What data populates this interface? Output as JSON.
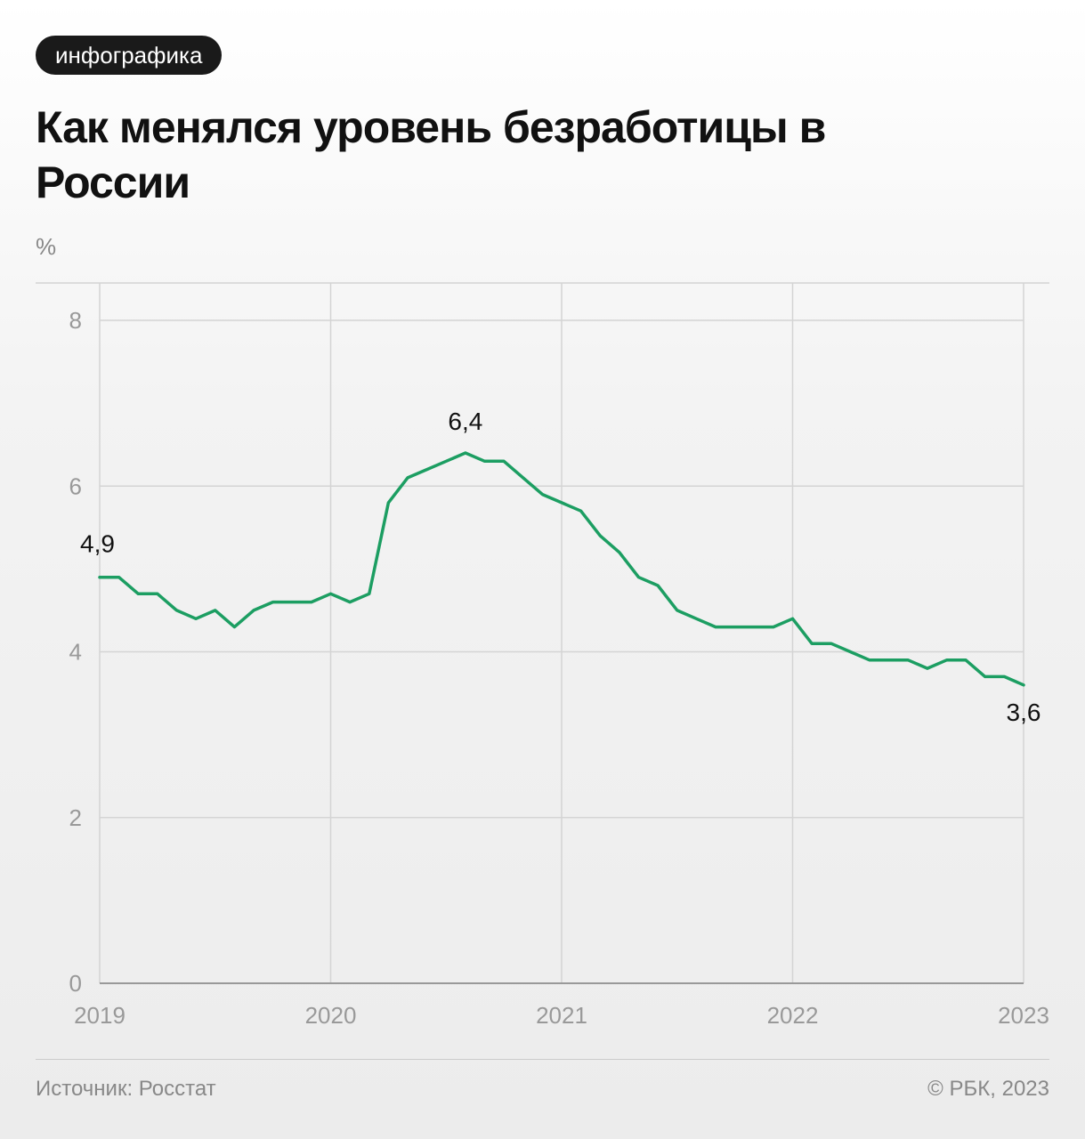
{
  "badge": "инфографика",
  "title": "Как менялся уровень безработицы в России",
  "unit_label": "%",
  "source": "Источник: Росстат",
  "copyright": "© РБК, 2023",
  "colors": {
    "line": "#1c9e62",
    "grid": "#d4d4d4",
    "axis": "#999999",
    "badge_bg": "#1a1a1a"
  },
  "chart_data": {
    "type": "line",
    "xlabel": "",
    "ylabel": "%",
    "ylim": [
      0,
      8
    ],
    "yticks": [
      0,
      2,
      4,
      6,
      8
    ],
    "xlim": [
      2019,
      2023
    ],
    "xticks": [
      "2019",
      "2020",
      "2021",
      "2022",
      "2023"
    ],
    "grid": true,
    "x": [
      2019.0,
      2019.0833,
      2019.1667,
      2019.25,
      2019.3333,
      2019.4167,
      2019.5,
      2019.5833,
      2019.6667,
      2019.75,
      2019.8333,
      2019.9167,
      2020.0,
      2020.0833,
      2020.1667,
      2020.25,
      2020.3333,
      2020.4167,
      2020.5,
      2020.5833,
      2020.6667,
      2020.75,
      2020.8333,
      2020.9167,
      2021.0,
      2021.0833,
      2021.1667,
      2021.25,
      2021.3333,
      2021.4167,
      2021.5,
      2021.5833,
      2021.6667,
      2021.75,
      2021.8333,
      2021.9167,
      2022.0,
      2022.0833,
      2022.1667,
      2022.25,
      2022.3333,
      2022.4167,
      2022.5,
      2022.5833,
      2022.6667,
      2022.75,
      2022.8333,
      2022.9167,
      2023.0
    ],
    "values": [
      4.9,
      4.9,
      4.7,
      4.7,
      4.5,
      4.4,
      4.5,
      4.3,
      4.5,
      4.6,
      4.6,
      4.6,
      4.7,
      4.6,
      4.7,
      5.8,
      6.1,
      6.2,
      6.3,
      6.4,
      6.3,
      6.3,
      6.1,
      5.9,
      5.8,
      5.7,
      5.4,
      5.2,
      4.9,
      4.8,
      4.5,
      4.4,
      4.3,
      4.3,
      4.3,
      4.3,
      4.4,
      4.1,
      4.1,
      4.0,
      3.9,
      3.9,
      3.9,
      3.8,
      3.9,
      3.9,
      3.7,
      3.7,
      3.6
    ],
    "annotations": [
      {
        "index": 0,
        "text": "4,9"
      },
      {
        "index": 19,
        "text": "6,4"
      },
      {
        "index": 48,
        "text": "3,6"
      }
    ]
  }
}
